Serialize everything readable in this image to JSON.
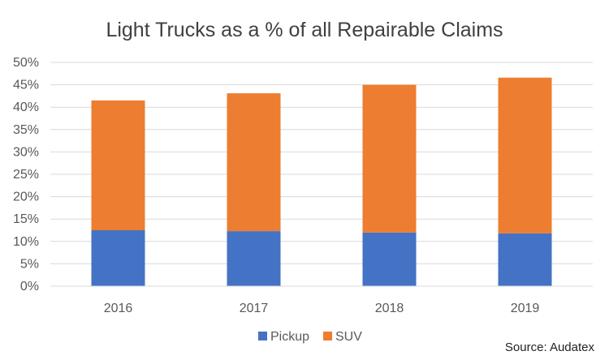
{
  "chart_data": {
    "type": "bar",
    "stacked": true,
    "title": "Light Trucks as a % of all Repairable Claims",
    "categories": [
      "2016",
      "2017",
      "2018",
      "2019"
    ],
    "series": [
      {
        "name": "Pickup",
        "color": "#4472C4",
        "values": [
          12.5,
          12.3,
          12.0,
          11.8
        ]
      },
      {
        "name": "SUV",
        "color": "#ED7D31",
        "values": [
          29.0,
          30.8,
          33.0,
          34.8
        ]
      }
    ],
    "ylim": [
      0,
      50
    ],
    "yticks": [
      0,
      5,
      10,
      15,
      20,
      25,
      30,
      35,
      40,
      45,
      50
    ],
    "ytick_labels": [
      "0%",
      "5%",
      "10%",
      "15%",
      "20%",
      "25%",
      "30%",
      "35%",
      "40%",
      "45%",
      "50%"
    ],
    "grid": true,
    "legend_position": "bottom"
  },
  "source": "Source:  Audatex"
}
